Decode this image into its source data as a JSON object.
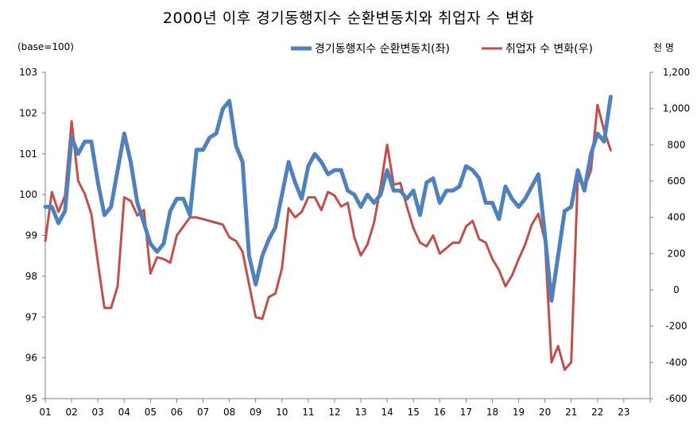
{
  "chart_data": {
    "type": "line",
    "title": "2000년 이후 경기동행지수 순환변동치와 취업자 수 변화",
    "left_axis_label": "(base=100)",
    "right_axis_label": "천 명",
    "left_ylim": [
      95,
      103
    ],
    "left_ticks": [
      "95",
      "96",
      "97",
      "98",
      "99",
      "100",
      "101",
      "102",
      "103"
    ],
    "right_ylim": [
      -600,
      1200
    ],
    "right_ticks": [
      "-600",
      "-400",
      "-200",
      "0",
      "200",
      "400",
      "600",
      "800",
      "1,000",
      "1,200"
    ],
    "x_ticks": [
      "01",
      "02",
      "03",
      "04",
      "05",
      "06",
      "07",
      "08",
      "09",
      "10",
      "11",
      "12",
      "13",
      "14",
      "15",
      "16",
      "17",
      "18",
      "19",
      "20",
      "21",
      "22",
      "23"
    ],
    "x_start": 2001.0,
    "x_step": 0.25,
    "series": [
      {
        "name": "경기동행지수 순환변동치(좌)",
        "axis": "left",
        "color": "#4f81bd",
        "values": [
          99.7,
          99.7,
          99.3,
          99.6,
          101.4,
          101.0,
          101.3,
          101.3,
          100.3,
          99.5,
          99.7,
          100.6,
          101.5,
          100.8,
          99.8,
          99.3,
          98.8,
          98.6,
          98.8,
          99.6,
          99.9,
          99.9,
          99.5,
          101.1,
          101.1,
          101.4,
          101.5,
          102.1,
          102.3,
          101.2,
          100.8,
          98.5,
          97.8,
          98.5,
          98.9,
          99.2,
          100.0,
          100.8,
          100.3,
          99.9,
          100.7,
          101.0,
          100.8,
          100.5,
          100.6,
          100.6,
          100.1,
          100.0,
          99.7,
          100.0,
          99.8,
          100.0,
          100.6,
          100.1,
          100.1,
          99.9,
          100.1,
          99.5,
          100.3,
          100.4,
          99.8,
          100.1,
          100.1,
          100.2,
          100.7,
          100.6,
          100.4,
          99.8,
          99.8,
          99.4,
          100.2,
          99.9,
          99.7,
          99.9,
          100.2,
          100.5,
          99.0,
          97.4,
          98.5,
          99.6,
          99.7,
          100.6,
          100.1,
          101.0,
          101.5,
          101.3,
          102.4
        ]
      },
      {
        "name": "취업자 수 변화(우)",
        "axis": "right",
        "color": "#c0504d",
        "values": [
          270,
          540,
          430,
          520,
          930,
          600,
          530,
          420,
          150,
          -100,
          -100,
          20,
          510,
          490,
          410,
          440,
          90,
          180,
          170,
          150,
          300,
          350,
          400,
          400,
          390,
          380,
          370,
          360,
          290,
          270,
          210,
          30,
          -150,
          -160,
          -40,
          -20,
          120,
          450,
          400,
          430,
          510,
          510,
          440,
          540,
          520,
          460,
          480,
          290,
          190,
          250,
          370,
          570,
          800,
          580,
          590,
          460,
          340,
          260,
          240,
          300,
          200,
          230,
          260,
          260,
          350,
          380,
          280,
          260,
          170,
          110,
          20,
          80,
          170,
          250,
          360,
          420,
          270,
          -400,
          -310,
          -440,
          -400,
          620,
          560,
          660,
          1020,
          880,
          770
        ]
      }
    ]
  }
}
